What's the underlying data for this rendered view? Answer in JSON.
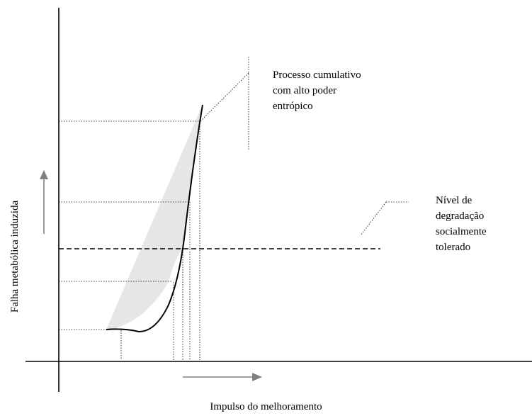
{
  "xlabel": "Impulso do melhoramento",
  "ylabel": "Falha metabólica induzida",
  "annotations": {
    "cumulative": [
      "Processo cumulativo",
      "com alto poder",
      "entrópico"
    ],
    "tolerance": [
      "Nível de",
      "degradação",
      "socialmente",
      "tolerado"
    ]
  },
  "colors": {
    "shade": "#e6e6e6",
    "line": "#000000",
    "arrow": "#808080"
  }
}
